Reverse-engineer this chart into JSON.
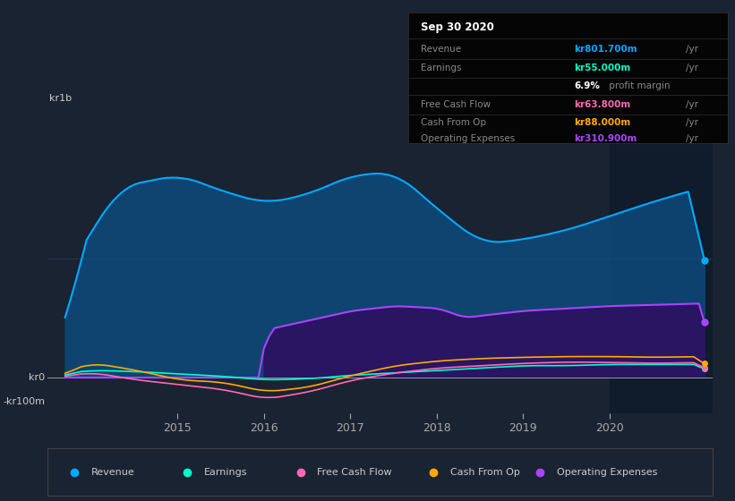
{
  "bg_color": "#1a2332",
  "plot_bg_color": "#1a2332",
  "y_label_top": "kr1b",
  "y_label_mid": "kr0",
  "y_label_bot": "-kr100m",
  "x_ticks": [
    2015,
    2016,
    2017,
    2018,
    2019,
    2020
  ],
  "revenue_color": "#00aaff",
  "earnings_color": "#00ffcc",
  "fcf_color": "#ff69b4",
  "cashop_color": "#ffaa00",
  "opex_color": "#aa44ff",
  "legend_labels": [
    "Revenue",
    "Earnings",
    "Free Cash Flow",
    "Cash From Op",
    "Operating Expenses"
  ],
  "legend_colors": [
    "#00aaff",
    "#00ffcc",
    "#ff69b4",
    "#ffaa00",
    "#aa44ff"
  ],
  "tooltip": {
    "date": "Sep 30 2020",
    "revenue_label": "Revenue",
    "revenue_value": "kr801.700m",
    "revenue_color": "#00aaff",
    "earnings_label": "Earnings",
    "earnings_value": "kr55.000m",
    "earnings_color": "#00ffcc",
    "margin_text": "6.9% profit margin",
    "fcf_label": "Free Cash Flow",
    "fcf_value": "kr63.800m",
    "fcf_color": "#ff69b4",
    "cashop_label": "Cash From Op",
    "cashop_value": "kr88.000m",
    "cashop_color": "#ffaa00",
    "opex_label": "Operating Expenses",
    "opex_value": "kr310.900m",
    "opex_color": "#aa44ff"
  },
  "shade_start": 2020.0,
  "ylim": [
    -150,
    1100
  ],
  "xlim": [
    2013.5,
    2021.2
  ]
}
